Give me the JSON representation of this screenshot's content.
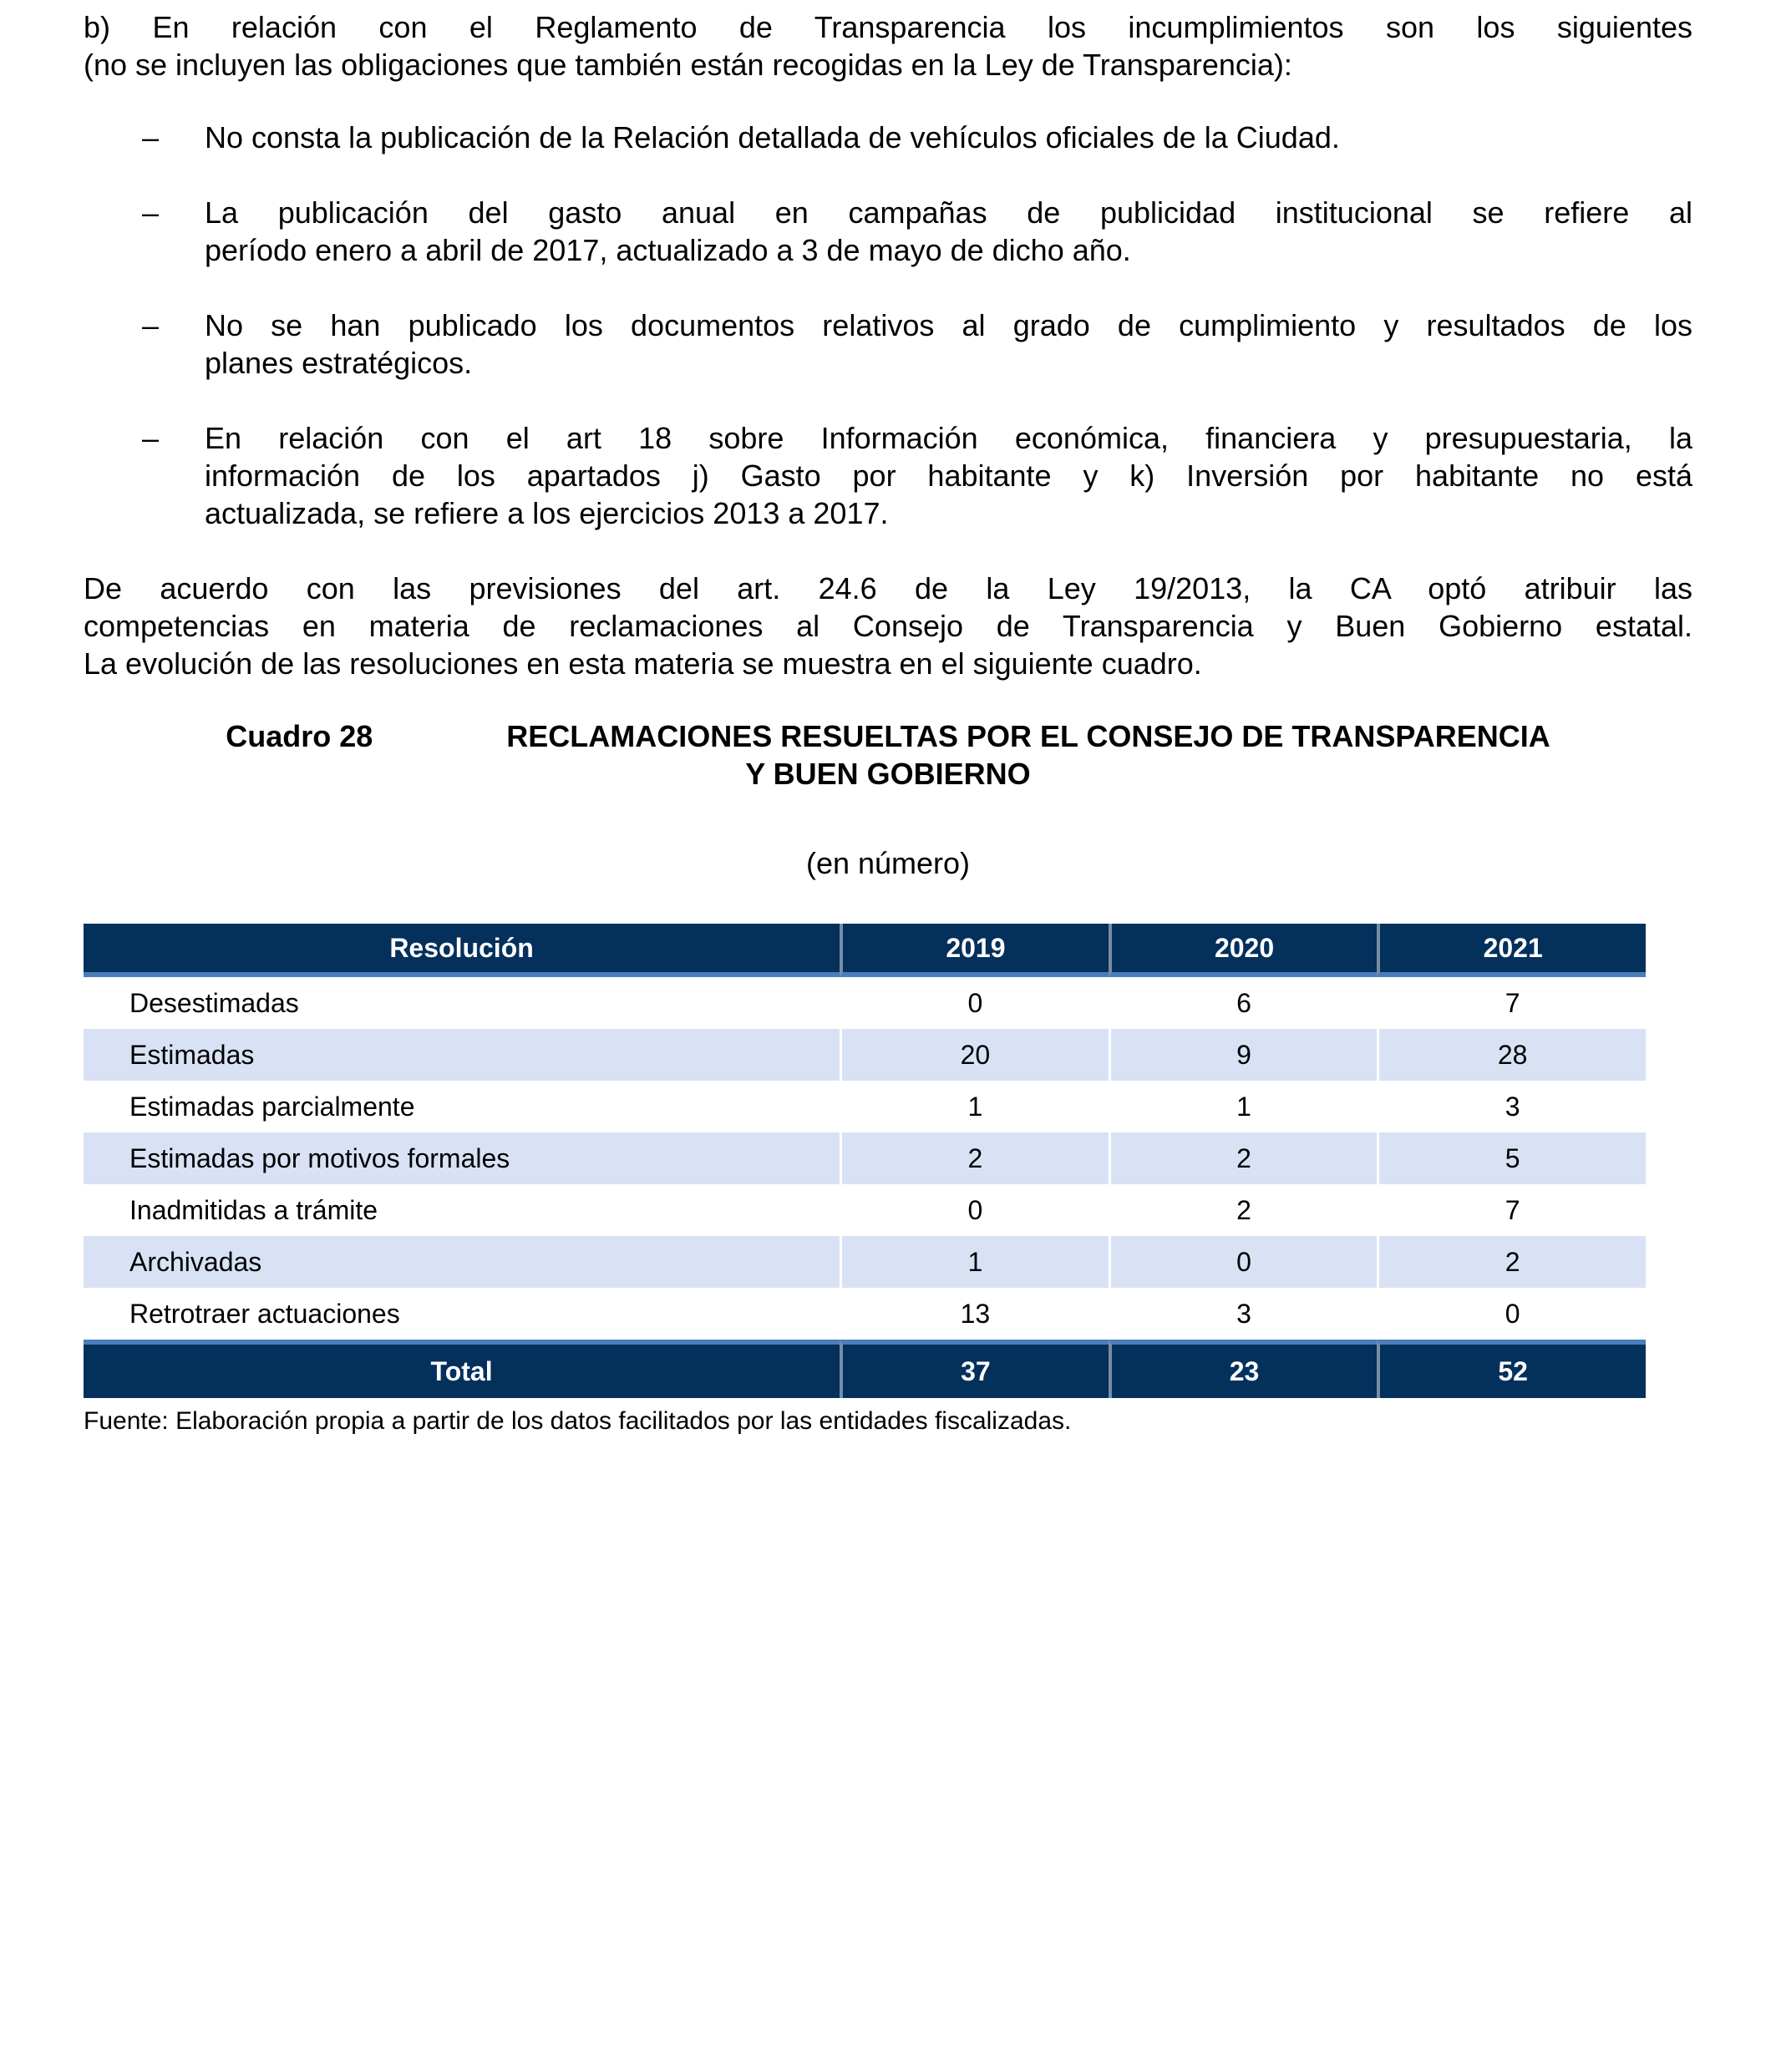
{
  "document": {
    "intro_lines": [
      "b) En relación con el Reglamento de Transparencia los incumplimientos son los siguientes",
      "(no se incluyen las obligaciones que también están recogidas en la Ley de Transparencia):"
    ],
    "bullet_marker": "–",
    "bullets": [
      [
        "No consta la publicación de la Relación detallada de vehículos oficiales de la Ciudad."
      ],
      [
        "La publicación del gasto anual en campañas de publicidad institucional se refiere al",
        "período enero a abril de 2017, actualizado a 3 de mayo de dicho año."
      ],
      [
        "No se han publicado los documentos relativos al grado de cumplimiento y resultados de los",
        "planes estratégicos."
      ],
      [
        "En relación con el art 18 sobre Información económica, financiera y presupuestaria, la",
        "información de los apartados j) Gasto por habitante y k) Inversión por habitante no está",
        "actualizada, se refiere a los ejercicios 2013 a 2017."
      ]
    ],
    "paragraph_lines": [
      "De acuerdo con las previsiones del art. 24.6 de la Ley 19/2013, la CA optó atribuir las",
      "competencias en materia de reclamaciones al Consejo de Transparencia y Buen Gobierno estatal.",
      "La evolución de las resoluciones en esta materia se muestra en el siguiente cuadro."
    ],
    "caption": {
      "label": "Cuadro 28",
      "title_line1": "RECLAMACIONES RESUELTAS POR EL CONSEJO DE TRANSPARENCIA",
      "title_line2": "Y BUEN GOBIERNO"
    },
    "unit_note": "(en número)",
    "source_note": "Fuente: Elaboración propia a partir de los datos facilitados por las entidades fiscalizadas."
  },
  "table": {
    "columns": [
      "Resolución",
      "2019",
      "2020",
      "2021"
    ],
    "rows": [
      [
        "Desestimadas",
        "0",
        "6",
        "7"
      ],
      [
        "Estimadas",
        "20",
        "9",
        "28"
      ],
      [
        "Estimadas parcialmente",
        "1",
        "1",
        "3"
      ],
      [
        "Estimadas por motivos formales",
        "2",
        "2",
        "5"
      ],
      [
        "Inadmitidas a trámite",
        "0",
        "2",
        "7"
      ],
      [
        "Archivadas",
        "1",
        "0",
        "2"
      ],
      [
        "Retrotraer actuaciones",
        "13",
        "3",
        "0"
      ]
    ],
    "total": [
      "Total",
      "37",
      "23",
      "52"
    ]
  },
  "colors": {
    "table_header_bg": "#04305C",
    "table_accent_border": "#4A7EBB",
    "table_band_bg": "#D9E2F5",
    "table_header_text": "#FFFFFF"
  }
}
